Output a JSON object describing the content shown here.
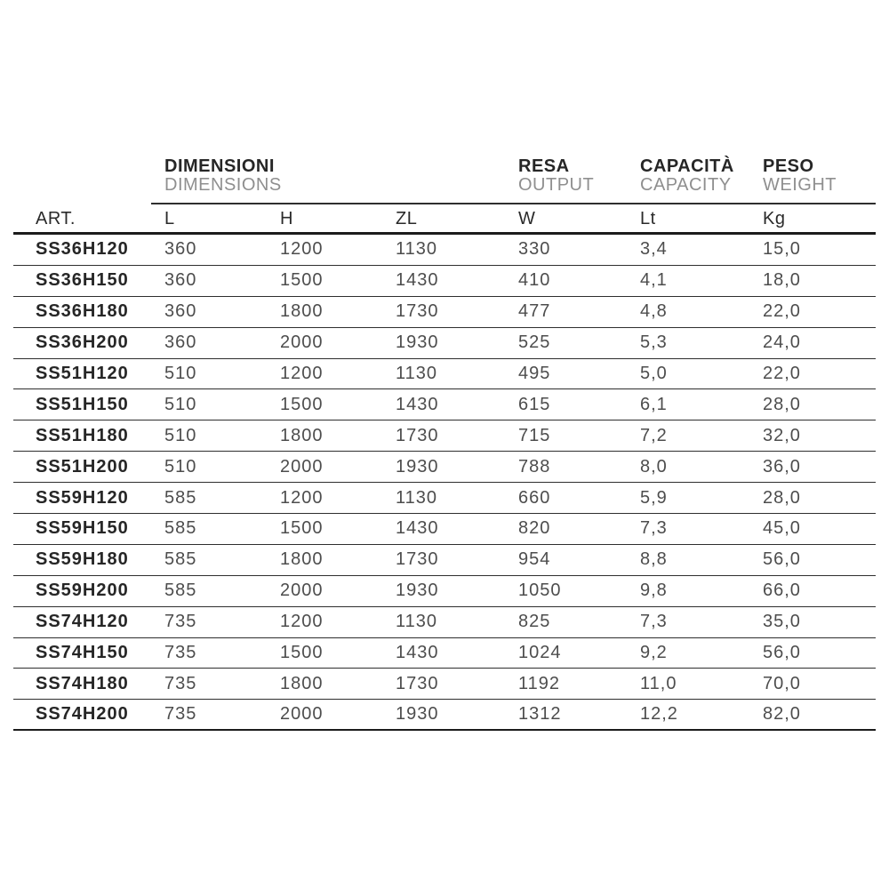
{
  "table": {
    "group_headers": [
      {
        "title": "DIMENSIONI",
        "subtitle": "DIMENSIONS"
      },
      {
        "title": "RESA",
        "subtitle": "OUTPUT"
      },
      {
        "title": "CAPACITÀ",
        "subtitle": "CAPACITY"
      },
      {
        "title": "PESO",
        "subtitle": "WEIGHT"
      }
    ],
    "columns": [
      "ART.",
      "L",
      "H",
      "ZL",
      "W",
      "Lt",
      "Kg"
    ],
    "rows": [
      [
        "SS36H120",
        "360",
        "1200",
        "1130",
        "330",
        "3,4",
        "15,0"
      ],
      [
        "SS36H150",
        "360",
        "1500",
        "1430",
        "410",
        "4,1",
        "18,0"
      ],
      [
        "SS36H180",
        "360",
        "1800",
        "1730",
        "477",
        "4,8",
        "22,0"
      ],
      [
        "SS36H200",
        "360",
        "2000",
        "1930",
        "525",
        "5,3",
        "24,0"
      ],
      [
        "SS51H120",
        "510",
        "1200",
        "1130",
        "495",
        "5,0",
        "22,0"
      ],
      [
        "SS51H150",
        "510",
        "1500",
        "1430",
        "615",
        "6,1",
        "28,0"
      ],
      [
        "SS51H180",
        "510",
        "1800",
        "1730",
        "715",
        "7,2",
        "32,0"
      ],
      [
        "SS51H200",
        "510",
        "2000",
        "1930",
        "788",
        "8,0",
        "36,0"
      ],
      [
        "SS59H120",
        "585",
        "1200",
        "1130",
        "660",
        "5,9",
        "28,0"
      ],
      [
        "SS59H150",
        "585",
        "1500",
        "1430",
        "820",
        "7,3",
        "45,0"
      ],
      [
        "SS59H180",
        "585",
        "1800",
        "1730",
        "954",
        "8,8",
        "56,0"
      ],
      [
        "SS59H200",
        "585",
        "2000",
        "1930",
        "1050",
        "9,8",
        "66,0"
      ],
      [
        "SS74H120",
        "735",
        "1200",
        "1130",
        "825",
        "7,3",
        "35,0"
      ],
      [
        "SS74H150",
        "735",
        "1500",
        "1430",
        "1024",
        "9,2",
        "56,0"
      ],
      [
        "SS74H180",
        "735",
        "1800",
        "1730",
        "1192",
        "11,0",
        "70,0"
      ],
      [
        "SS74H200",
        "735",
        "2000",
        "1930",
        "1312",
        "12,2",
        "82,0"
      ]
    ]
  },
  "colors": {
    "heading": "#262626",
    "subheading": "#8f8f8f",
    "value": "#4d4d4d",
    "line": "#2e2e2e",
    "background": "#ffffff"
  }
}
